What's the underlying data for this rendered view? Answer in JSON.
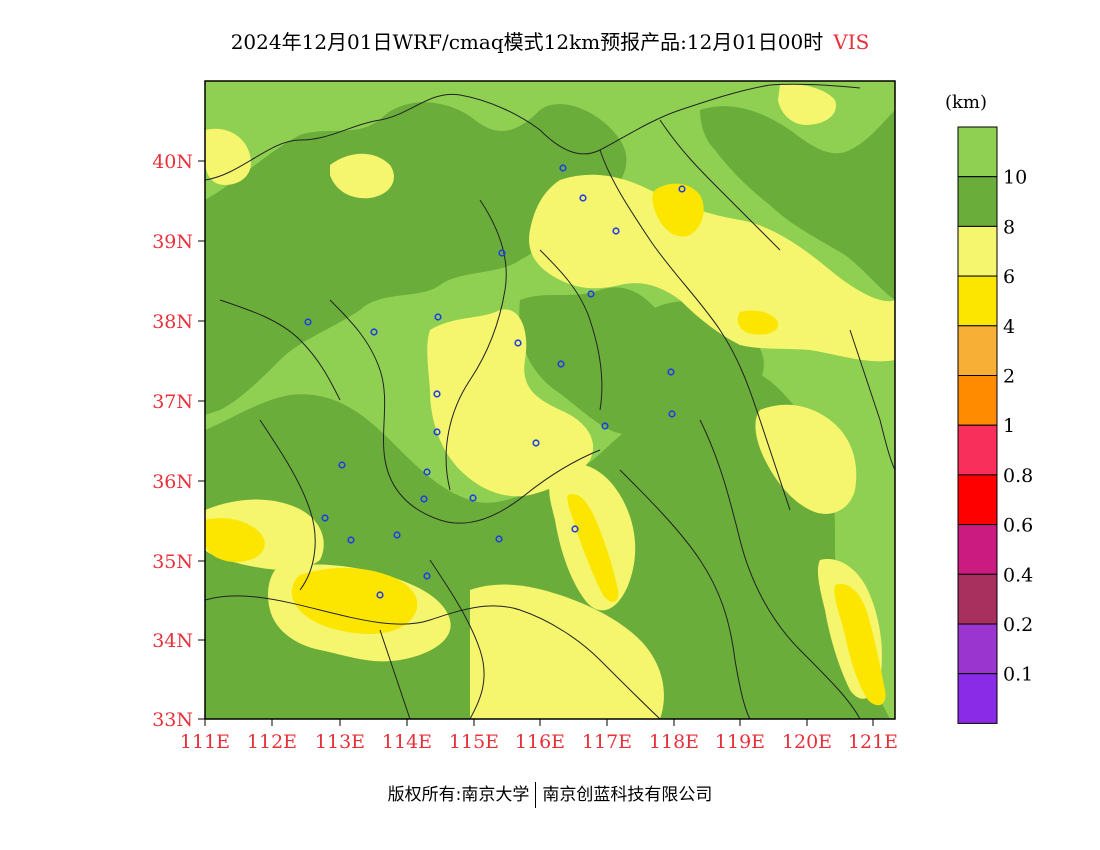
{
  "title": {
    "main": "2024年12月01日WRF/cmaq模式12km预报产品:12月01日00时",
    "variable": "VIS"
  },
  "map": {
    "lat_labels": [
      "40N",
      "39N",
      "38N",
      "37N",
      "36N",
      "35N",
      "34N",
      "33N"
    ],
    "lon_labels": [
      "111E",
      "112E",
      "113E",
      "114E",
      "115E",
      "116E",
      "117E",
      "118E",
      "119E",
      "120E",
      "121E"
    ],
    "label_color": "#e8303a",
    "field_colors": {
      "gt10": "#8fd053",
      "8_10": "#6aad3a",
      "6_8": "#f5f66e",
      "4_6": "#fce600"
    },
    "city_marker_color": "#1f3fe0"
  },
  "legend": {
    "unit": "(km)",
    "bins": [
      {
        "color": "#8fd053",
        "label": "10"
      },
      {
        "color": "#6aad3a",
        "label": "8"
      },
      {
        "color": "#f5f66e",
        "label": "6"
      },
      {
        "color": "#fce600",
        "label": "4"
      },
      {
        "color": "#f7b035",
        "label": "2"
      },
      {
        "color": "#ff8c00",
        "label": "1"
      },
      {
        "color": "#f72f5a",
        "label": "0.8"
      },
      {
        "color": "#ff0000",
        "label": "0.6"
      },
      {
        "color": "#cc1b80",
        "label": "0.4"
      },
      {
        "color": "#a7305f",
        "label": "0.2"
      },
      {
        "color": "#9a35d0",
        "label": "0.1"
      },
      {
        "color": "#8a2be8",
        "label": ""
      }
    ]
  },
  "footer": {
    "left": "版权所有:南京大学",
    "right": "南京创蓝科技有限公司"
  }
}
